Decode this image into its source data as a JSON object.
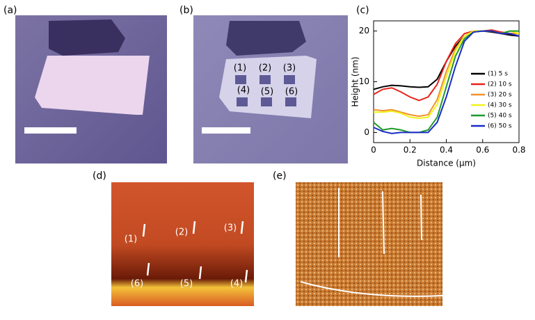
{
  "panels": [
    {
      "label": "(a)"
    },
    {
      "label": "(b)",
      "marks": [
        "(1)",
        "(2)",
        "(3)",
        "(4)",
        "(5)",
        "(6)"
      ]
    },
    {
      "label": "(c)"
    },
    {
      "label": "(d)",
      "marks": [
        "(1)",
        "(2)",
        "(3)",
        "(6)",
        "(5)",
        "(4)"
      ]
    },
    {
      "label": "(e)"
    }
  ],
  "chart_data": {
    "type": "line",
    "xlabel": "Distance (μm)",
    "ylabel": "Height (nm)",
    "x": [
      0,
      0.05,
      0.1,
      0.15,
      0.2,
      0.25,
      0.3,
      0.35,
      0.4,
      0.45,
      0.5,
      0.55,
      0.6,
      0.65,
      0.7,
      0.75,
      0.8
    ],
    "xlim": [
      0,
      0.8
    ],
    "xticks": [
      0,
      0.2,
      0.4,
      0.6,
      0.8
    ],
    "ylim": [
      -2,
      22
    ],
    "yticks": [
      0,
      10,
      20
    ],
    "series": [
      {
        "name": "(1) 5 s",
        "color": "#000000",
        "values": [
          8.5,
          9,
          9.3,
          9.2,
          9,
          8.9,
          9,
          10.5,
          14,
          17,
          19,
          20,
          20,
          19.8,
          19.5,
          19.2,
          19
        ]
      },
      {
        "name": "(2) 10 s",
        "color": "#e8231b",
        "values": [
          7.5,
          8.5,
          8.8,
          8,
          7,
          6.3,
          7,
          9.5,
          14,
          17.5,
          19.5,
          20,
          20,
          20.2,
          19.8,
          19.5,
          19.5
        ]
      },
      {
        "name": "(3) 20 s",
        "color": "#f0922b",
        "values": [
          4.5,
          4.3,
          4.5,
          4,
          3.5,
          3.2,
          3.5,
          6.5,
          12,
          16.5,
          19,
          20,
          20,
          20,
          19.5,
          19.5,
          19.5
        ]
      },
      {
        "name": "(4) 30 s",
        "color": "#f2f21a",
        "values": [
          4,
          4,
          4.2,
          3.8,
          3,
          2.8,
          3,
          5.5,
          11,
          16,
          19,
          20,
          20,
          20,
          19.5,
          20,
          19.5
        ]
      },
      {
        "name": "(5) 40 s",
        "color": "#1f9a2a",
        "values": [
          2,
          0.5,
          0.8,
          0.5,
          0,
          0,
          0.5,
          3,
          9,
          15,
          18.5,
          19.8,
          20,
          20,
          19.5,
          20,
          20
        ]
      },
      {
        "name": "(6) 50 s",
        "color": "#1a2bc8",
        "values": [
          1,
          0.2,
          -0.2,
          0,
          0,
          0,
          0,
          2,
          7,
          13,
          18,
          19.8,
          20,
          20,
          19.5,
          19.5,
          19
        ]
      }
    ]
  }
}
